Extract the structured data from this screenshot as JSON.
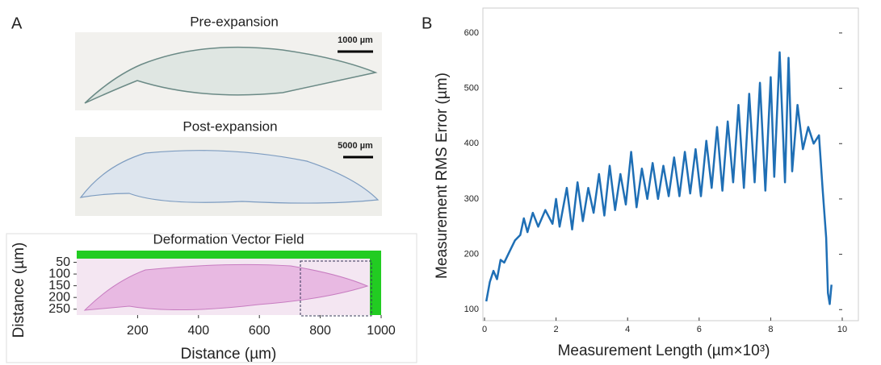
{
  "panel_labels": [
    "A",
    "B"
  ],
  "images": [
    {
      "title": "Pre-expansion",
      "scale_bar": "1000 µm"
    },
    {
      "title": "Post-expansion",
      "scale_bar": "5000 µm"
    }
  ],
  "chart_data": [
    {
      "type": "image",
      "title": "Deformation Vector Field",
      "xlabel": "Distance (µm)",
      "ylabel": "Distance (µm)",
      "xlim": [
        0,
        1000
      ],
      "ylim": [
        275,
        0
      ],
      "xticks": [
        200,
        400,
        600,
        800,
        1000
      ],
      "yticks": [
        50,
        100,
        150,
        200,
        250
      ]
    },
    {
      "type": "line",
      "xlabel": "Measurement Length (µm×10³)",
      "ylabel": "Measurement RMS Error (µm)",
      "color": "#1f6fb5",
      "xlim": [
        0,
        10
      ],
      "ylim": [
        80,
        645
      ],
      "xticks": [
        0,
        2,
        4,
        6,
        8,
        10
      ],
      "yticks": [
        100,
        200,
        300,
        400,
        500,
        600
      ],
      "x": [
        0.05,
        0.15,
        0.25,
        0.35,
        0.45,
        0.55,
        0.7,
        0.85,
        1.0,
        1.1,
        1.2,
        1.35,
        1.5,
        1.7,
        1.9,
        2.0,
        2.1,
        2.3,
        2.45,
        2.6,
        2.75,
        2.9,
        3.05,
        3.2,
        3.35,
        3.5,
        3.65,
        3.8,
        3.95,
        4.1,
        4.25,
        4.4,
        4.55,
        4.7,
        4.85,
        5.0,
        5.15,
        5.3,
        5.45,
        5.6,
        5.75,
        5.9,
        6.05,
        6.2,
        6.35,
        6.5,
        6.65,
        6.8,
        6.95,
        7.1,
        7.25,
        7.4,
        7.55,
        7.7,
        7.85,
        8.0,
        8.1,
        8.25,
        8.4,
        8.5,
        8.6,
        8.75,
        8.9,
        9.05,
        9.2,
        9.35,
        9.45,
        9.55,
        9.6,
        9.65,
        9.7
      ],
      "values": [
        115,
        150,
        170,
        155,
        190,
        185,
        205,
        225,
        235,
        265,
        240,
        275,
        250,
        280,
        255,
        300,
        250,
        320,
        245,
        330,
        260,
        320,
        275,
        345,
        270,
        360,
        280,
        345,
        290,
        385,
        285,
        355,
        300,
        365,
        300,
        360,
        305,
        375,
        305,
        385,
        310,
        390,
        305,
        405,
        320,
        430,
        315,
        440,
        330,
        470,
        320,
        490,
        330,
        510,
        315,
        520,
        340,
        565,
        330,
        555,
        350,
        470,
        390,
        430,
        400,
        415,
        320,
        230,
        130,
        110,
        145
      ]
    }
  ]
}
